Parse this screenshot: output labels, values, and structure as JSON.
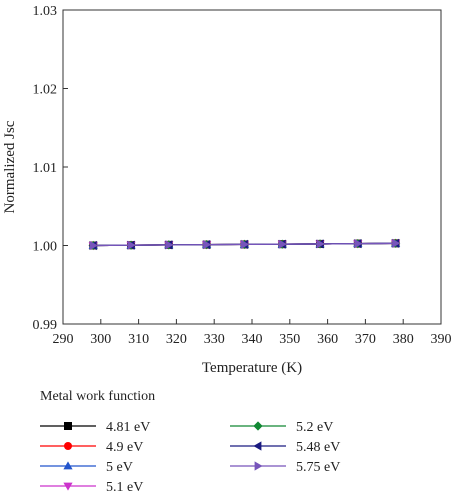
{
  "chart_data": {
    "type": "line",
    "xlabel": "Temperature (K)",
    "ylabel": "Normalized Jsc",
    "xlim": [
      290,
      390
    ],
    "ylim": [
      0.99,
      1.03
    ],
    "xticks": [
      "290",
      "300",
      "310",
      "320",
      "330",
      "340",
      "350",
      "360",
      "370",
      "380",
      "390"
    ],
    "yticks": [
      "0.99",
      "1.00",
      "1.01",
      "1.02",
      "1.03"
    ],
    "grid": false,
    "legend_title": "Metal work function",
    "legend_position": "bottom",
    "x": [
      298,
      308,
      318,
      328,
      338,
      348,
      358,
      368,
      378
    ],
    "series": [
      {
        "name": "4.81 eV",
        "color": "#000000",
        "marker": "square",
        "values": [
          1.0,
          1.00004,
          1.00008,
          1.00011,
          1.00014,
          1.00017,
          1.0002,
          1.00024,
          1.00028
        ]
      },
      {
        "name": "4.9 eV",
        "color": "#ff0000",
        "marker": "circle",
        "values": [
          1.0,
          1.00004,
          1.00008,
          1.00011,
          1.00014,
          1.00017,
          1.0002,
          1.00024,
          1.00028
        ]
      },
      {
        "name": "5 eV",
        "color": "#2255cc",
        "marker": "triangle-up",
        "values": [
          1.0,
          1.00004,
          1.00008,
          1.00011,
          1.00014,
          1.00017,
          1.0002,
          1.00024,
          1.00028
        ]
      },
      {
        "name": "5.1 eV",
        "color": "#cc33cc",
        "marker": "triangle-down",
        "values": [
          1.0,
          1.00004,
          1.00008,
          1.00011,
          1.00014,
          1.00017,
          1.0002,
          1.00024,
          1.00028
        ]
      },
      {
        "name": "5.2 eV",
        "color": "#118833",
        "marker": "diamond",
        "values": [
          1.0,
          1.00004,
          1.00008,
          1.00011,
          1.00014,
          1.00017,
          1.0002,
          1.00024,
          1.00028
        ]
      },
      {
        "name": "5.48 eV",
        "color": "#1a1a80",
        "marker": "triangle-left",
        "values": [
          1.0,
          1.00004,
          1.00008,
          1.00011,
          1.00014,
          1.00017,
          1.0002,
          1.00024,
          1.00028
        ]
      },
      {
        "name": "5.75 eV",
        "color": "#7755bb",
        "marker": "triangle-right",
        "values": [
          1.0,
          1.00004,
          1.00008,
          1.00011,
          1.00014,
          1.00017,
          1.0002,
          1.00024,
          1.00028
        ]
      }
    ]
  }
}
